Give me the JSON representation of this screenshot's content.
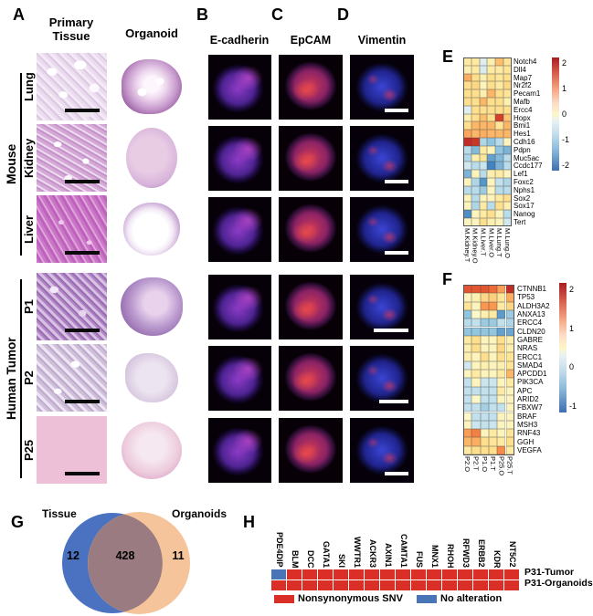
{
  "figure": {
    "panel_a": {
      "letter": "A",
      "col1_header": "Primary Tissue",
      "col2_header": "Organoid",
      "groups": [
        {
          "label": "Mouse"
        },
        {
          "label": "Human Tumor"
        }
      ],
      "rows": [
        {
          "label": "Lung"
        },
        {
          "label": "Kidney"
        },
        {
          "label": "Liver"
        },
        {
          "label": "P1"
        },
        {
          "label": "P2"
        },
        {
          "label": "P25"
        }
      ]
    },
    "panel_b": {
      "letter": "B",
      "header": "E-cadherin"
    },
    "panel_c": {
      "letter": "C",
      "header": "EpCAM"
    },
    "panel_d": {
      "letter": "D",
      "header": "Vimentin"
    },
    "panel_e": {
      "letter": "E"
    },
    "panel_f": {
      "letter": "F"
    },
    "panel_g": {
      "letter": "G"
    },
    "panel_h": {
      "letter": "H"
    }
  },
  "chart_data": [
    {
      "id": "heatmap_e",
      "type": "heatmap",
      "columns": [
        "M.Kidney.T",
        "M.Kidney.O",
        "M.Liver.T",
        "M.Liver.O",
        "M.Lung.T",
        "M.Lung.O"
      ],
      "rows": [
        "Notch4",
        "Dll4",
        "Map7",
        "Nr2f2",
        "Pecam1",
        "Mafb",
        "Ercc4",
        "Hopx",
        "Bmi1",
        "Hes1",
        "Cdh16",
        "Pdpn",
        "Muc5ac",
        "Ccdc177",
        "Lef1",
        "Foxc2",
        "Nphs1",
        "Sox2",
        "Sox17",
        "Nanog",
        "Tert"
      ],
      "values": [
        [
          0.3,
          0.3,
          -0.1,
          0.2,
          0.9,
          0.4
        ],
        [
          0.2,
          0.3,
          -0.2,
          0.3,
          0.3,
          0.4
        ],
        [
          1.1,
          0.5,
          0.2,
          0.5,
          0.4,
          0.5
        ],
        [
          0.5,
          0.6,
          0.1,
          0.5,
          0.3,
          0.6
        ],
        [
          0.5,
          0.5,
          0.2,
          1.0,
          0.5,
          0.4
        ],
        [
          0.5,
          0.5,
          1.0,
          0.5,
          0.5,
          0.2
        ],
        [
          -0.1,
          0.5,
          0.5,
          0.5,
          0.5,
          0.5
        ],
        [
          0.2,
          0.5,
          0.9,
          0.5,
          2.2,
          0.8
        ],
        [
          0.5,
          1.0,
          1.0,
          1.0,
          0.4,
          1.0
        ],
        [
          1.2,
          1.0,
          1.1,
          1.0,
          1.0,
          1.0
        ],
        [
          2.4,
          2.3,
          -0.7,
          -1.0,
          -0.6,
          0.1
        ],
        [
          -0.6,
          -1.2,
          0.3,
          0.1,
          -1.0,
          -1.3
        ],
        [
          -0.7,
          0.2,
          0.4,
          -1.6,
          -1.2,
          -0.6
        ],
        [
          -0.3,
          -0.6,
          -0.4,
          -2.1,
          -1.3,
          -0.6
        ],
        [
          -1.3,
          0.1,
          -0.6,
          0.2,
          0.3,
          0.1
        ],
        [
          0.1,
          -0.7,
          -1.8,
          0.1,
          -0.5,
          -0.7
        ],
        [
          -0.6,
          -0.6,
          -0.9,
          0.1,
          -0.6,
          -0.6
        ],
        [
          0.1,
          -0.6,
          0.1,
          0.1,
          0.3,
          0.5
        ],
        [
          0.1,
          -0.7,
          0.3,
          -0.6,
          0.5,
          0.2
        ],
        [
          -1.9,
          0.1,
          0.3,
          0.5,
          0.1,
          -0.6
        ],
        [
          0.1,
          0.1,
          0.5,
          0.2,
          0.1,
          -0.3
        ]
      ],
      "colorbar_ticks": [
        "2",
        "1",
        "0",
        "-1",
        "-2"
      ]
    },
    {
      "id": "heatmap_f",
      "type": "heatmap",
      "columns": [
        "P2.O",
        "P2.T",
        "P1.O",
        "P1.T",
        "P25.O",
        "P25.T"
      ],
      "rows": [
        "CTNNB1",
        "TP53",
        "ALDH3A2",
        "ANXA13",
        "ERCC4",
        "CLDN20",
        "GABRE",
        "NRAS",
        "ERCC1",
        "SMAD4",
        "APCDD1",
        "PIK3CA",
        "APC",
        "ARID2",
        "FBXW7",
        "BRAF",
        "MSH3",
        "RNF43",
        "GGH",
        "VEGFA"
      ],
      "values": [
        [
          2.0,
          2.0,
          2.0,
          1.8,
          1.3,
          2.4
        ],
        [
          0.1,
          0.2,
          0.6,
          0.7,
          0.4,
          1.1
        ],
        [
          0.4,
          0.1,
          1.4,
          1.4,
          0.3,
          0.6
        ],
        [
          -1.0,
          0.0,
          0.2,
          0.3,
          -1.7,
          -0.9
        ],
        [
          -0.6,
          -0.5,
          -0.9,
          -0.9,
          -0.5,
          -0.7
        ],
        [
          -1.0,
          -1.0,
          -1.0,
          -1.0,
          -1.6,
          -1.5
        ],
        [
          0.3,
          0.5,
          0.1,
          0.1,
          0.5,
          0.2
        ],
        [
          0.2,
          0.5,
          0.1,
          0.1,
          0.6,
          0.2
        ],
        [
          0.2,
          0.1,
          0.5,
          0.1,
          0.5,
          0.4
        ],
        [
          -0.3,
          0.1,
          0.2,
          0.1,
          0.2,
          0.4
        ],
        [
          0.1,
          0.3,
          0.1,
          0.1,
          0.3,
          1.0
        ],
        [
          -0.5,
          0.1,
          -0.4,
          -0.4,
          0.1,
          0.3
        ],
        [
          -0.5,
          -0.5,
          -0.5,
          -0.5,
          0.3,
          0.1
        ],
        [
          -0.5,
          0.0,
          -0.5,
          -0.5,
          0.1,
          0.1
        ],
        [
          -0.5,
          -0.5,
          -0.8,
          -0.5,
          -0.5,
          0.1
        ],
        [
          0.0,
          -0.5,
          -0.5,
          -0.5,
          0.1,
          0.1
        ],
        [
          0.1,
          -0.4,
          -0.5,
          -0.4,
          0.1,
          0.1
        ],
        [
          1.3,
          1.6,
          0.1,
          0.3,
          0.1,
          0.4
        ],
        [
          1.0,
          1.1,
          0.5,
          0.4,
          0.3,
          0.5
        ],
        [
          0.3,
          0.5,
          0.5,
          0.5,
          1.5,
          0.3
        ]
      ],
      "colorbar_ticks": [
        "2",
        "1",
        "0",
        "-1"
      ]
    },
    {
      "id": "venn_g",
      "type": "venn",
      "left_label": "Tissue",
      "right_label": "Organoids",
      "left_only": "12",
      "overlap": "428",
      "right_only": "11",
      "left_color": "#4a72c0",
      "right_color": "#f5c49a",
      "overlap_color": "#9a7b81"
    },
    {
      "id": "mutation_grid_h",
      "type": "table",
      "genes": [
        "PDE4DIP",
        "BLM",
        "DCC",
        "GATA1",
        "SKI",
        "WWTR1",
        "ACKR3",
        "AXIN1",
        "CAMTA1",
        "FUS",
        "MNX1",
        "RHOH",
        "RFWD3",
        "ERBB2",
        "KDR",
        "NT5C2"
      ],
      "rows": [
        {
          "label": "P31-Tumor",
          "cells": [
            0,
            1,
            1,
            1,
            1,
            1,
            1,
            1,
            1,
            1,
            1,
            1,
            1,
            1,
            1,
            1
          ]
        },
        {
          "label": "P31-Organoids",
          "cells": [
            1,
            1,
            1,
            1,
            1,
            1,
            1,
            1,
            1,
            1,
            1,
            1,
            1,
            1,
            1,
            1
          ]
        }
      ],
      "legend": [
        {
          "label": "Nonsynonymous SNV",
          "color": "#d92f26"
        },
        {
          "label": "No alteration",
          "color": "#4a74b8"
        }
      ]
    }
  ]
}
